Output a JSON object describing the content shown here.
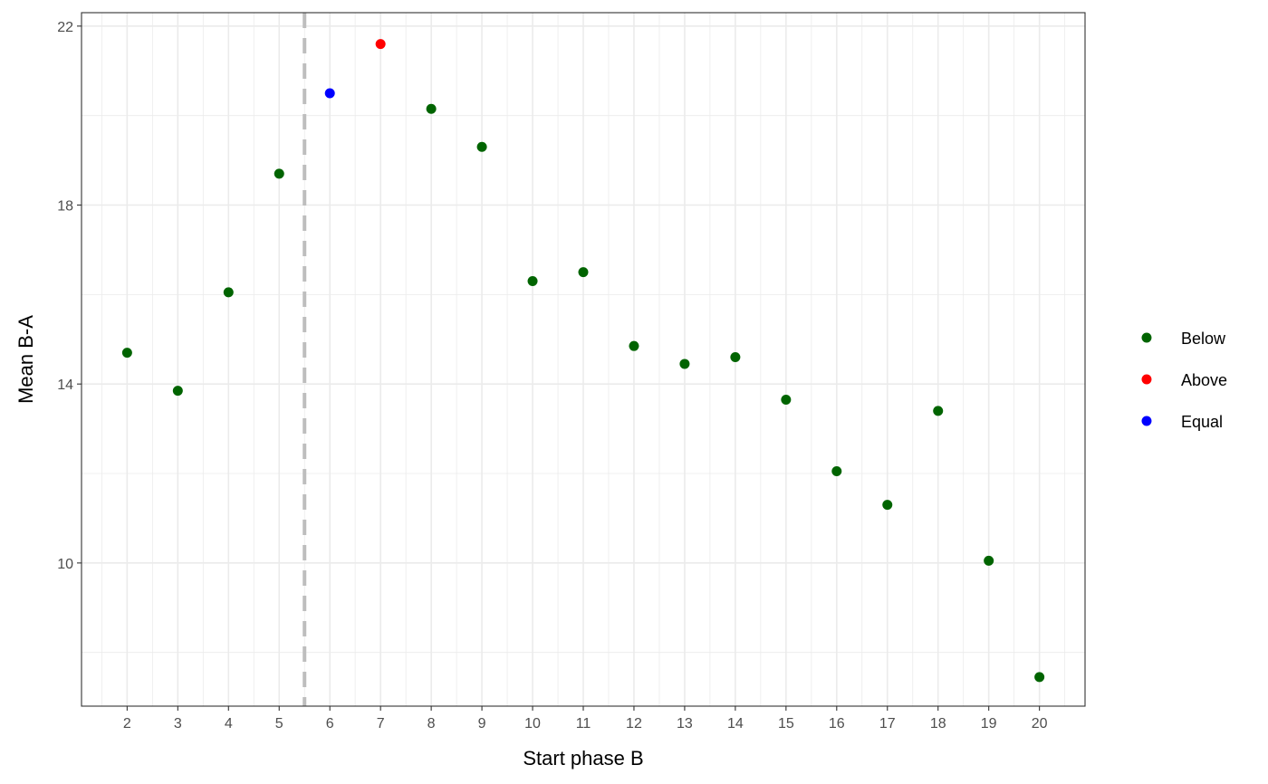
{
  "chart_data": {
    "type": "scatter",
    "title": "",
    "xlabel": "Start phase B",
    "ylabel": "Mean B-A",
    "xlim": [
      1.1,
      20.9
    ],
    "ylim": [
      6.8,
      22.3
    ],
    "x_ticks": [
      2,
      3,
      4,
      5,
      6,
      7,
      8,
      9,
      10,
      11,
      12,
      13,
      14,
      15,
      16,
      17,
      18,
      19,
      20
    ],
    "y_ticks": [
      10,
      14,
      18,
      22
    ],
    "y_minor_ticks": [
      8,
      12,
      16,
      20
    ],
    "grid": true,
    "reference_line": {
      "x": 5.5,
      "style": "dashed",
      "color": "#bebebe"
    },
    "legend": {
      "placement": "right"
    },
    "series": [
      {
        "name": "Below",
        "color": "#006400",
        "points": [
          {
            "x": 2,
            "y": 14.7
          },
          {
            "x": 3,
            "y": 13.85
          },
          {
            "x": 4,
            "y": 16.05
          },
          {
            "x": 5,
            "y": 18.7
          },
          {
            "x": 8,
            "y": 20.15
          },
          {
            "x": 9,
            "y": 19.3
          },
          {
            "x": 10,
            "y": 16.3
          },
          {
            "x": 11,
            "y": 16.5
          },
          {
            "x": 12,
            "y": 14.85
          },
          {
            "x": 13,
            "y": 14.45
          },
          {
            "x": 14,
            "y": 14.6
          },
          {
            "x": 15,
            "y": 13.65
          },
          {
            "x": 16,
            "y": 12.05
          },
          {
            "x": 17,
            "y": 11.3
          },
          {
            "x": 18,
            "y": 13.4
          },
          {
            "x": 19,
            "y": 10.05
          },
          {
            "x": 20,
            "y": 7.45
          }
        ]
      },
      {
        "name": "Above",
        "color": "#ff0000",
        "points": [
          {
            "x": 7,
            "y": 21.6
          }
        ]
      },
      {
        "name": "Equal",
        "color": "#0000ff",
        "points": [
          {
            "x": 6,
            "y": 20.5
          }
        ]
      }
    ]
  }
}
